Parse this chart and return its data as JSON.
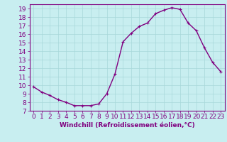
{
  "x": [
    0,
    1,
    2,
    3,
    4,
    5,
    6,
    7,
    8,
    9,
    10,
    11,
    12,
    13,
    14,
    15,
    16,
    17,
    18,
    19,
    20,
    21,
    22,
    23
  ],
  "y": [
    9.8,
    9.2,
    8.8,
    8.3,
    8.0,
    7.6,
    7.6,
    7.6,
    7.8,
    9.0,
    11.3,
    15.1,
    16.1,
    16.9,
    17.3,
    18.4,
    18.8,
    19.1,
    18.9,
    17.3,
    16.4,
    14.4,
    12.7,
    11.6
  ],
  "line_color": "#800080",
  "marker": "+",
  "marker_size": 3.5,
  "background_color": "#c8eef0",
  "grid_color": "#a8d8da",
  "xlabel": "Windchill (Refroidissement éolien,°C)",
  "ylim": [
    7,
    19.5
  ],
  "xlim": [
    -0.5,
    23.5
  ],
  "yticks": [
    7,
    8,
    9,
    10,
    11,
    12,
    13,
    14,
    15,
    16,
    17,
    18,
    19
  ],
  "xticks": [
    0,
    1,
    2,
    3,
    4,
    5,
    6,
    7,
    8,
    9,
    10,
    11,
    12,
    13,
    14,
    15,
    16,
    17,
    18,
    19,
    20,
    21,
    22,
    23
  ],
  "font_color": "#800080",
  "font_size": 6.5,
  "xlabel_fontsize": 6.5,
  "line_width": 1.0
}
